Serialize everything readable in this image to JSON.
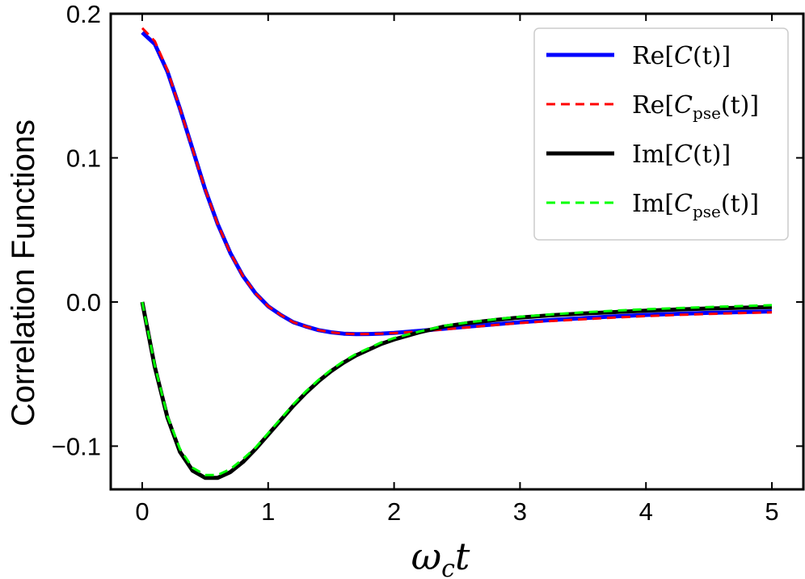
{
  "chart_data": {
    "type": "line",
    "title": "",
    "xlabel": "ωct",
    "xlabel_parts": {
      "main": "ω",
      "sub": "c",
      "tail": "t"
    },
    "ylabel": "Correlation Functions",
    "xlim": [
      -0.25,
      5.25
    ],
    "ylim": [
      -0.13,
      0.2
    ],
    "xticks": [
      0,
      1,
      2,
      3,
      4,
      5
    ],
    "xtick_labels": [
      "0",
      "1",
      "2",
      "3",
      "4",
      "5"
    ],
    "yticks": [
      -0.1,
      0.0,
      0.1,
      0.2
    ],
    "ytick_labels": [
      "−0.1",
      "0.0",
      "0.1",
      "0.2"
    ],
    "grid": false,
    "legend_position": "top-right",
    "x": [
      0,
      0.1,
      0.2,
      0.3,
      0.4,
      0.5,
      0.6,
      0.7,
      0.8,
      0.9,
      1.0,
      1.1,
      1.2,
      1.3,
      1.4,
      1.5,
      1.6,
      1.7,
      1.8,
      1.9,
      2.0,
      2.2,
      2.4,
      2.6,
      2.8,
      3.0,
      3.25,
      3.5,
      3.75,
      4.0,
      4.25,
      4.5,
      4.75,
      5.0
    ],
    "series": [
      {
        "name": "Re[C(t)]",
        "legend": {
          "prefix": "Re[",
          "main": "C",
          "sub": "",
          "suffix": "(t)]"
        },
        "color": "#0000ff",
        "style": "solid",
        "width": 5,
        "values": [
          0.187,
          0.179,
          0.16,
          0.134,
          0.106,
          0.078,
          0.054,
          0.034,
          0.018,
          0.006,
          -0.003,
          -0.009,
          -0.014,
          -0.017,
          -0.0195,
          -0.021,
          -0.022,
          -0.0223,
          -0.0222,
          -0.0219,
          -0.0214,
          -0.02,
          -0.0185,
          -0.017,
          -0.0155,
          -0.014,
          -0.0125,
          -0.0112,
          -0.01,
          -0.009,
          -0.0082,
          -0.0075,
          -0.007,
          -0.0065
        ]
      },
      {
        "name": "Re[Cpse(t)]",
        "legend": {
          "prefix": "Re[",
          "main": "C",
          "sub": "pse",
          "suffix": "(t)]"
        },
        "color": "#ff0000",
        "style": "dashed",
        "width": 3,
        "values": [
          0.19,
          0.181,
          0.161,
          0.134,
          0.106,
          0.078,
          0.054,
          0.034,
          0.018,
          0.006,
          -0.003,
          -0.009,
          -0.014,
          -0.017,
          -0.0195,
          -0.021,
          -0.022,
          -0.0223,
          -0.0222,
          -0.022,
          -0.0216,
          -0.0204,
          -0.019,
          -0.0175,
          -0.016,
          -0.0146,
          -0.0132,
          -0.012,
          -0.0108,
          -0.0098,
          -0.009,
          -0.0083,
          -0.0077,
          -0.0072
        ]
      },
      {
        "name": "Im[C(t)]",
        "legend": {
          "prefix": "Im[",
          "main": "C",
          "sub": "",
          "suffix": "(t)]"
        },
        "color": "#000000",
        "style": "solid",
        "width": 5,
        "values": [
          0.0,
          -0.045,
          -0.08,
          -0.104,
          -0.117,
          -0.122,
          -0.122,
          -0.118,
          -0.111,
          -0.102,
          -0.092,
          -0.082,
          -0.072,
          -0.063,
          -0.055,
          -0.048,
          -0.042,
          -0.037,
          -0.033,
          -0.029,
          -0.026,
          -0.021,
          -0.017,
          -0.0145,
          -0.0125,
          -0.0108,
          -0.0092,
          -0.008,
          -0.007,
          -0.006,
          -0.0052,
          -0.0045,
          -0.004,
          -0.0035
        ]
      },
      {
        "name": "Im[Cpse(t)]",
        "legend": {
          "prefix": "Im[",
          "main": "C",
          "sub": "pse",
          "suffix": "(t)]"
        },
        "color": "#00ff00",
        "style": "dashed",
        "width": 3,
        "values": [
          0.0,
          -0.044,
          -0.079,
          -0.102,
          -0.115,
          -0.12,
          -0.12,
          -0.116,
          -0.109,
          -0.101,
          -0.091,
          -0.081,
          -0.071,
          -0.062,
          -0.054,
          -0.047,
          -0.041,
          -0.036,
          -0.032,
          -0.028,
          -0.025,
          -0.0205,
          -0.0165,
          -0.014,
          -0.012,
          -0.0102,
          -0.0086,
          -0.0072,
          -0.006,
          -0.005,
          -0.0042,
          -0.0035,
          -0.0028,
          -0.0022
        ]
      }
    ]
  }
}
